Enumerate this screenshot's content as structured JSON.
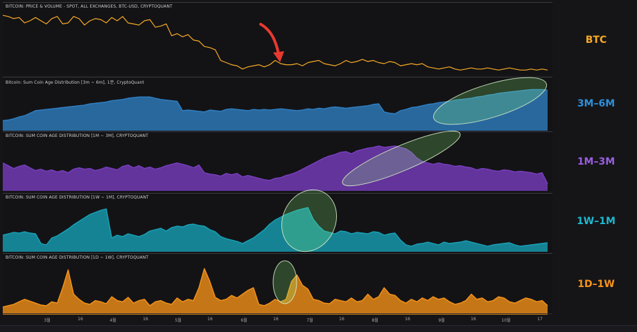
{
  "chart_data": [
    {
      "type": "line",
      "title": "BITCOIN: PRICE & VOLUME - SPOT, ALL EXCHANGES, BTC-USD, CRYPTOQUANT",
      "label": "BTC",
      "color": "#f7a925",
      "values": [
        54,
        53,
        51,
        52,
        47,
        49,
        52,
        49,
        46,
        51,
        53,
        46,
        47,
        53,
        51,
        45,
        49,
        51,
        50,
        47,
        52,
        49,
        53,
        47,
        46,
        45,
        49,
        50,
        43,
        44,
        46,
        35,
        37,
        34,
        36,
        31,
        30,
        25,
        24,
        22,
        12,
        10,
        8,
        7,
        4,
        6,
        7,
        8,
        6,
        8,
        12,
        9,
        8,
        8,
        9,
        7,
        10,
        11,
        12,
        9,
        8,
        7,
        9,
        12,
        10,
        11,
        13,
        11,
        12,
        10,
        9,
        11,
        10,
        7,
        8,
        9,
        8,
        9,
        6,
        5,
        4,
        5,
        6,
        4,
        3,
        4,
        5,
        4,
        4,
        5,
        4,
        3,
        4,
        5,
        4,
        3,
        3,
        4,
        3,
        4,
        3
      ],
      "ylim": [
        0,
        58
      ]
    },
    {
      "type": "area",
      "title": "Bitcoin: Sum Coin Age Distribution [3m ~ 6m], 1분, CryptoQuant",
      "label": "3M–6M",
      "color": "#2f80c4",
      "values": [
        14,
        15,
        17,
        20,
        22,
        26,
        30,
        31,
        32,
        33,
        34,
        35,
        36,
        37,
        38,
        39,
        41,
        42,
        43,
        44,
        46,
        47,
        48,
        50,
        51,
        52,
        52,
        52,
        50,
        48,
        47,
        46,
        45,
        30,
        31,
        30,
        29,
        28,
        31,
        30,
        29,
        32,
        33,
        32,
        31,
        30,
        32,
        31,
        32,
        31,
        32,
        33,
        32,
        31,
        30,
        31,
        33,
        32,
        34,
        33,
        35,
        36,
        35,
        34,
        35,
        36,
        37,
        38,
        40,
        41,
        28,
        26,
        25,
        30,
        32,
        35,
        36,
        38,
        40,
        41,
        43,
        44,
        45,
        47,
        48,
        49,
        50,
        52,
        53,
        55,
        56,
        58,
        59,
        60,
        61,
        62,
        63,
        64,
        64,
        64,
        63
      ],
      "ylim": [
        0,
        70
      ]
    },
    {
      "type": "area",
      "title": "BITCOIN: SUM COIN AGE DISTRIBUTION [1M ~ 3M], CRYPTOQUANT",
      "label": "1M–3M",
      "color": "#7a3ec1",
      "values": [
        38,
        34,
        30,
        33,
        35,
        31,
        27,
        29,
        26,
        28,
        25,
        27,
        24,
        29,
        31,
        29,
        30,
        27,
        29,
        32,
        30,
        28,
        33,
        35,
        31,
        34,
        30,
        32,
        29,
        31,
        34,
        36,
        38,
        36,
        34,
        31,
        35,
        24,
        22,
        21,
        19,
        23,
        21,
        23,
        18,
        20,
        18,
        16,
        14,
        13,
        16,
        17,
        20,
        22,
        25,
        29,
        33,
        37,
        41,
        45,
        48,
        50,
        53,
        54,
        51,
        55,
        57,
        59,
        60,
        62,
        60,
        61,
        62,
        60,
        58,
        53,
        45,
        40,
        38,
        36,
        38,
        36,
        35,
        33,
        34,
        32,
        31,
        28,
        30,
        29,
        27,
        26,
        28,
        27,
        25,
        26,
        25,
        24,
        22,
        24,
        8
      ],
      "ylim": [
        0,
        70
      ]
    },
    {
      "type": "area",
      "title": "BITCOIN: SUM COIN AGE DISTRIBUTION [1W ~ 1M], CRYPTOQUANT",
      "label": "1W–1M",
      "color": "#17a3b8",
      "values": [
        22,
        24,
        26,
        25,
        27,
        25,
        24,
        10,
        8,
        18,
        21,
        26,
        31,
        37,
        42,
        47,
        52,
        55,
        58,
        60,
        18,
        22,
        20,
        24,
        22,
        20,
        23,
        28,
        30,
        32,
        28,
        33,
        35,
        34,
        37,
        38,
        36,
        35,
        30,
        27,
        20,
        17,
        15,
        13,
        10,
        14,
        18,
        24,
        30,
        38,
        44,
        48,
        52,
        55,
        58,
        60,
        62,
        45,
        35,
        28,
        26,
        24,
        28,
        27,
        24,
        26,
        25,
        24,
        27,
        26,
        22,
        24,
        25,
        15,
        8,
        6,
        9,
        10,
        12,
        10,
        8,
        12,
        10,
        11,
        12,
        14,
        12,
        10,
        8,
        6,
        8,
        9,
        10,
        11,
        8,
        6,
        7,
        8,
        9,
        10,
        11
      ],
      "ylim": [
        0,
        70
      ]
    },
    {
      "type": "area",
      "title": "BITCOIN: SUM COIN AGE DISTRIBUTION [1D ~ 1W], CRYPTOQUANT",
      "label": "1D–1W",
      "color": "#f7931a",
      "values": [
        10,
        12,
        14,
        18,
        22,
        19,
        16,
        13,
        12,
        18,
        16,
        40,
        68,
        30,
        22,
        16,
        14,
        20,
        18,
        15,
        26,
        20,
        18,
        25,
        16,
        20,
        22,
        12,
        18,
        20,
        16,
        14,
        24,
        18,
        22,
        20,
        40,
        70,
        50,
        25,
        20,
        22,
        28,
        24,
        30,
        36,
        40,
        14,
        12,
        16,
        22,
        18,
        22,
        50,
        60,
        44,
        38,
        22,
        20,
        16,
        15,
        22,
        20,
        18,
        24,
        18,
        20,
        30,
        22,
        26,
        40,
        30,
        28,
        20,
        16,
        22,
        18,
        24,
        20,
        26,
        22,
        24,
        18,
        14,
        16,
        20,
        30,
        22,
        24,
        18,
        20,
        26,
        24,
        18,
        16,
        20,
        24,
        22,
        18,
        20,
        12
      ],
      "ylim": [
        0,
        80
      ]
    }
  ],
  "x_axis_ticks": [
    "3월",
    "16",
    "4월",
    "16",
    "5월",
    "16",
    "6월",
    "16",
    "7월",
    "16",
    "8월",
    "16",
    "9월",
    "16",
    "10월",
    "17"
  ]
}
